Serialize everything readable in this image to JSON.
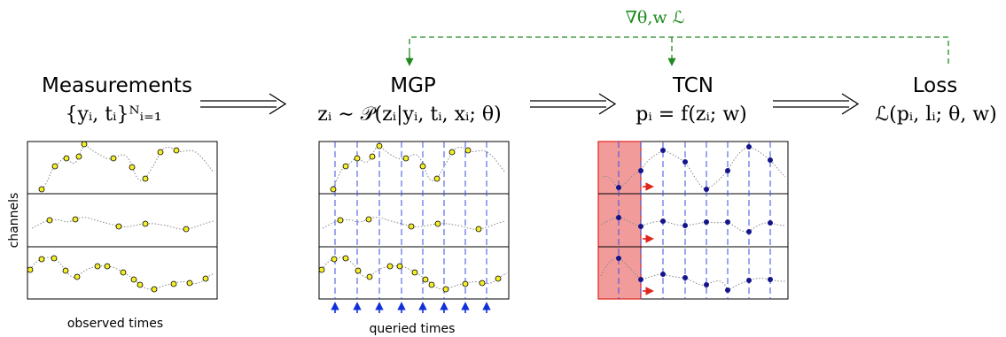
{
  "gradient_label": "∇θ,w ℒ",
  "stages": [
    {
      "title": "Measurements",
      "formula": "{yᵢ, tᵢ}ᴺᵢ₌₁"
    },
    {
      "title": "MGP",
      "formula": "zᵢ ∼ 𝒫(zᵢ|yᵢ, tᵢ, xᵢ; θ)"
    },
    {
      "title": "TCN",
      "formula": "pᵢ = f(zᵢ; w)"
    },
    {
      "title": "Loss",
      "formula": "ℒ(pᵢ, lᵢ; θ, w)"
    }
  ],
  "labels": {
    "channels": "channels",
    "observed": "observed times",
    "queried": "queried times"
  },
  "colors": {
    "green": "#1f8a1f",
    "blue_dash": "#3b4fe0",
    "arrow_blue": "#1030d8",
    "dot_yellow": "#f5ee2a",
    "dot_navy": "#14148a",
    "window": "#f08a8a",
    "red": "#e0241b"
  }
}
